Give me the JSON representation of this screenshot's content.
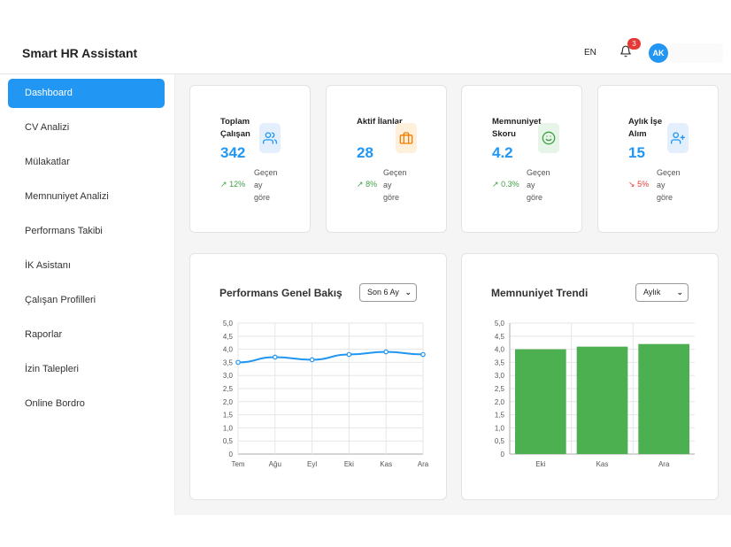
{
  "app": {
    "title": "Smart HR Assistant"
  },
  "header": {
    "language": "EN",
    "notifications_count": "3",
    "avatar_initials": "AK"
  },
  "sidebar": {
    "items": [
      {
        "label": "Dashboard",
        "active": true
      },
      {
        "label": "CV Analizi"
      },
      {
        "label": "Mülakatlar"
      },
      {
        "label": "Memnuniyet Analizi"
      },
      {
        "label": "Performans Takibi"
      },
      {
        "label": "İK Asistanı"
      },
      {
        "label": "Çalışan Profilleri"
      },
      {
        "label": "Raporlar"
      },
      {
        "label": "İzin Talepleri"
      },
      {
        "label": "Online Bordro"
      }
    ]
  },
  "stats": [
    {
      "title": "Toplam Çalışan",
      "value": "342",
      "trend": "12%",
      "trend_dir": "up",
      "note": "Geçen ay göre",
      "icon": "users-icon",
      "icon_color": "#2196f3",
      "icon_bg": "#e3effd"
    },
    {
      "title": "Aktif İlanlar",
      "value": "28",
      "trend": "8%",
      "trend_dir": "up",
      "note": "Geçen ay göre",
      "icon": "briefcase-icon",
      "icon_color": "#f57c00",
      "icon_bg": "#fff0dc"
    },
    {
      "title": "Memnuniyet Skoru",
      "value": "4.2",
      "trend": "0.3%",
      "trend_dir": "up",
      "note": "Geçen ay göre",
      "icon": "smile-icon",
      "icon_color": "#43a047",
      "icon_bg": "#e6f5e7"
    },
    {
      "title": "Aylık İşe Alım",
      "value": "15",
      "trend": "5%",
      "trend_dir": "down",
      "note": "Geçen ay göre",
      "icon": "user-plus-icon",
      "icon_color": "#2196f3",
      "icon_bg": "#e3effd"
    }
  ],
  "colors": {
    "accent": "#2196f3",
    "up": "#43a047",
    "down": "#e53935",
    "bar": "#4caf50"
  },
  "performance_panel": {
    "title": "Performans Genel Bakış",
    "period_selected": "Son 6 Ay"
  },
  "satisfaction_panel": {
    "title": "Memnuniyet Trendi",
    "period_selected": "Aylık"
  },
  "chart_data": [
    {
      "type": "line",
      "categories": [
        "Tem",
        "Ağu",
        "Eyl",
        "Eki",
        "Kas",
        "Ara"
      ],
      "series": [
        {
          "values": [
            3.5,
            3.7,
            3.6,
            3.8,
            3.9,
            3.8
          ],
          "color": "#2196f3"
        }
      ],
      "ylim": [
        0,
        5
      ],
      "yticks": [
        "0",
        "0,5",
        "1,0",
        "1,5",
        "2,0",
        "2,5",
        "3,0",
        "3,5",
        "4,0",
        "4,5",
        "5,0"
      ],
      "grid": true
    },
    {
      "type": "bar",
      "categories": [
        "Eki",
        "Kas",
        "Ara"
      ],
      "values": [
        4.0,
        4.1,
        4.2
      ],
      "color": "#4caf50",
      "ylim": [
        0,
        5
      ],
      "yticks": [
        "0",
        "0,5",
        "1,0",
        "1,5",
        "2,0",
        "2,5",
        "3,0",
        "3,5",
        "4,0",
        "4,5",
        "5,0"
      ],
      "grid": true
    }
  ]
}
